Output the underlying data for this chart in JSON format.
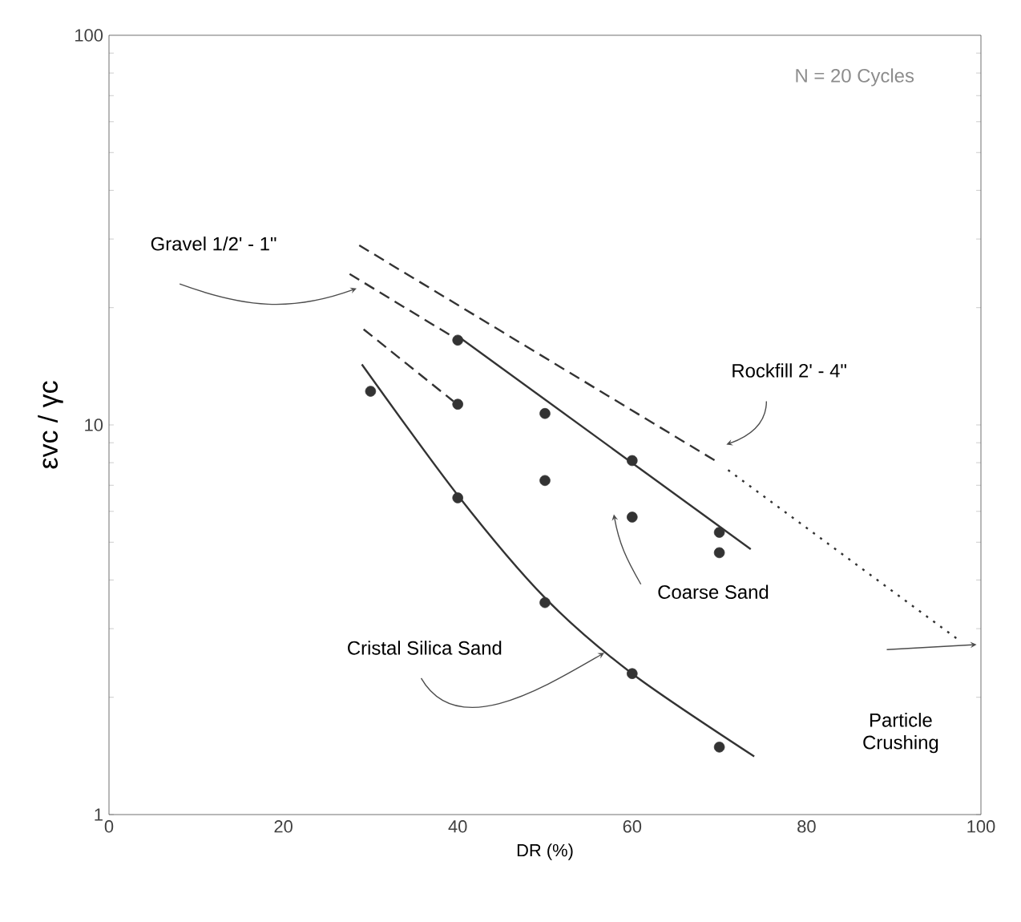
{
  "chart_data": {
    "type": "line",
    "xlabel": "DR (%)",
    "ylabel": "εvc / γc",
    "log": "y",
    "xlim": [
      0,
      100
    ],
    "ylim": [
      1,
      100
    ],
    "xticks": [
      0,
      20,
      40,
      60,
      80,
      100
    ],
    "yticks": [
      1,
      10,
      100
    ],
    "grid": false,
    "series": [
      {
        "line_style": "dashed",
        "color": "#333333",
        "x": [
          28.7,
          69.7
        ],
        "values": [
          28.9,
          8.05
        ]
      },
      {
        "line_style": "dotted",
        "color": "#333333",
        "x": [
          71,
          97.7
        ],
        "values": [
          7.66,
          2.78
        ]
      },
      {
        "line_style": "dashed",
        "color": "#333333",
        "x": [
          27.6,
          39.5
        ],
        "values": [
          24.4,
          16.8
        ]
      },
      {
        "line_style": "dashed",
        "color": "#333333",
        "x": [
          29.2,
          39.5
        ],
        "values": [
          17.6,
          11.5
        ]
      },
      {
        "line_style": "solid",
        "color": "#333333",
        "x": [
          40,
          73.6
        ],
        "values": [
          16.9,
          4.8
        ]
      },
      {
        "line_style": "solid",
        "color": "#333333",
        "x": [
          29,
          40,
          50,
          60,
          74
        ],
        "values": [
          14.3,
          6.6,
          3.6,
          2.3,
          1.41
        ]
      },
      {
        "type": "scatter",
        "marker": "circle",
        "color": "#333333",
        "x": [
          40,
          50,
          60,
          70
        ],
        "values": [
          16.5,
          10.7,
          8.1,
          5.3
        ]
      },
      {
        "type": "scatter",
        "marker": "circle",
        "color": "#333333",
        "x": [
          40,
          50,
          60,
          70
        ],
        "values": [
          11.3,
          7.2,
          5.8,
          4.7
        ]
      },
      {
        "type": "scatter",
        "marker": "circle",
        "color": "#333333",
        "x": [
          30,
          40,
          50,
          60,
          70
        ],
        "values": [
          12.2,
          6.5,
          3.5,
          2.3,
          1.49
        ]
      }
    ],
    "annotations": [
      "N = 20 Cycles",
      "Gravel 1/2' - 1\"",
      "Rockfill 2' - 4\"",
      "Coarse Sand",
      {
        "text": "Cristal Silica Sand",
        "x": 56.8,
        "y": 2.6
      },
      "Particle Crushing"
    ]
  }
}
